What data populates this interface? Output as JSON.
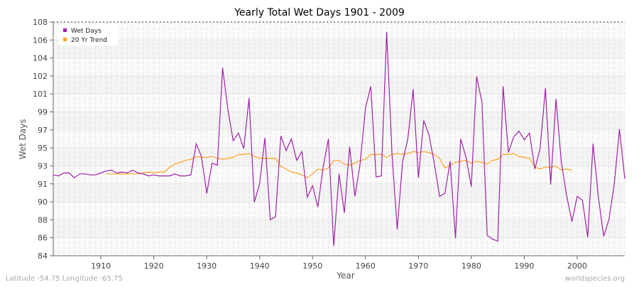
{
  "chart_data": {
    "type": "line",
    "title": "Yearly Total Wet Days 1901 - 2009",
    "xlabel": "Year",
    "ylabel": "Wet Days",
    "xlim": [
      1901,
      2009
    ],
    "ylim": [
      84,
      108
    ],
    "x_ticks": [
      1910,
      1920,
      1930,
      1940,
      1950,
      1960,
      1970,
      1980,
      1990,
      2000
    ],
    "y_tick_labels": [
      "84",
      "86",
      "88",
      "90",
      "91",
      "93",
      "95",
      "97",
      "99",
      "101",
      "102",
      "104",
      "106",
      "108"
    ],
    "grid": true,
    "legend_position": "top-left",
    "series": [
      {
        "name": "Wet Days",
        "color": "#a020a8",
        "start_year": 1901,
        "values": [
          92.3,
          92.2,
          92.5,
          92.5,
          92.0,
          92.4,
          92.4,
          92.3,
          92.3,
          92.5,
          92.7,
          92.8,
          92.5,
          92.6,
          92.5,
          92.8,
          92.5,
          92.4,
          92.2,
          92.3,
          92.2,
          92.2,
          92.2,
          92.4,
          92.2,
          92.2,
          92.3,
          95.5,
          94.2,
          90.4,
          93.5,
          93.3,
          103.3,
          99.0,
          95.8,
          96.6,
          95.0,
          100.2,
          89.5,
          91.4,
          96.1,
          87.7,
          88.0,
          96.3,
          94.8,
          96.0,
          93.8,
          94.7,
          90.0,
          91.2,
          89.0,
          93.1,
          96.0,
          85.0,
          92.4,
          88.4,
          95.2,
          90.1,
          93.5,
          99.2,
          101.4,
          92.1,
          92.2,
          107.0,
          94.6,
          86.7,
          93.6,
          96.0,
          101.1,
          92.0,
          97.9,
          96.4,
          93.5,
          90.1,
          90.4,
          93.7,
          85.8,
          96.0,
          94.1,
          91.1,
          102.4,
          99.8,
          86.1,
          85.7,
          85.5,
          101.4,
          94.6,
          96.2,
          96.8,
          95.9,
          96.6,
          92.9,
          95.0,
          101.2,
          91.3,
          100.1,
          93.6,
          90.2,
          87.5,
          90.1,
          89.7,
          85.9,
          95.5,
          90.1,
          86.0,
          87.7,
          91.3,
          97.0,
          91.9
        ]
      },
      {
        "name": "20 Yr Trend",
        "color": "#ffa020",
        "start_year": 1911,
        "values": [
          92.4,
          92.4,
          92.4,
          92.4,
          92.4,
          92.4,
          92.4,
          92.5,
          92.6,
          92.5,
          92.6,
          92.6,
          93.1,
          93.4,
          93.6,
          93.8,
          93.9,
          94.2,
          94.1,
          94.1,
          94.2,
          94.0,
          93.9,
          94.0,
          94.1,
          94.4,
          94.4,
          94.5,
          94.2,
          94.0,
          94.0,
          94.0,
          94.0,
          93.2,
          92.9,
          92.6,
          92.5,
          92.3,
          92.0,
          92.4,
          92.9,
          92.8,
          93.0,
          93.8,
          93.8,
          93.4,
          93.3,
          93.5,
          93.8,
          93.9,
          94.4,
          94.4,
          94.4,
          94.1,
          94.4,
          94.5,
          94.4,
          94.5,
          94.7,
          94.6,
          94.7,
          94.6,
          94.4,
          94.0,
          93.0,
          93.3,
          93.6,
          93.7,
          93.8,
          93.5,
          93.7,
          93.6,
          93.4,
          93.8,
          93.9,
          94.4,
          94.4,
          94.5,
          94.2,
          94.1,
          94.0,
          93.1,
          92.9,
          93.1,
          93.1,
          93.2,
          92.8,
          92.9,
          92.8
        ]
      }
    ]
  },
  "footer": {
    "left": "Latitude -54.75 Longitude -65.75",
    "right": "worldspecies.org"
  }
}
